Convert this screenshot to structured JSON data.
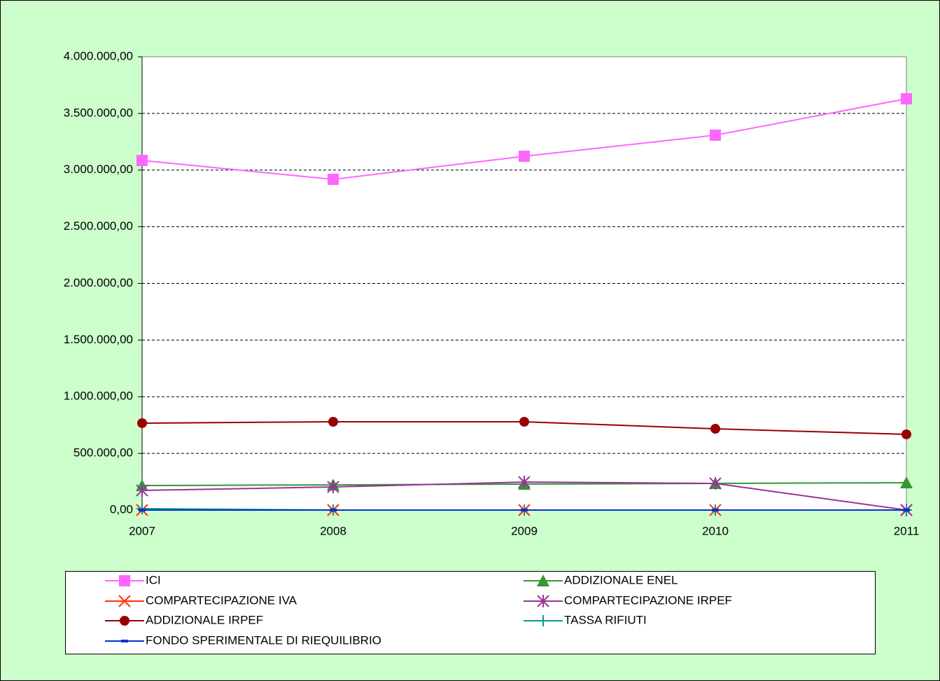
{
  "chart_data": {
    "type": "line",
    "categories": [
      "2007",
      "2008",
      "2009",
      "2010",
      "2011"
    ],
    "series": [
      {
        "name": "ICI",
        "color": "#ff66ff",
        "marker": "square",
        "values": [
          3085000,
          2918000,
          3122000,
          3308000,
          3629000
        ]
      },
      {
        "name": "ADDIZIONALE ENEL",
        "color": "#339933",
        "marker": "triangle",
        "values": [
          216000,
          222000,
          229000,
          235000,
          241000
        ]
      },
      {
        "name": "COMPARTECIPAZIONE IVA",
        "color": "#ff3300",
        "marker": "x",
        "values": [
          0,
          0,
          0,
          0,
          0
        ]
      },
      {
        "name": "COMPARTECIPAZIONE IRPEF",
        "color": "#993399",
        "marker": "asterisk",
        "values": [
          173000,
          204000,
          247000,
          235000,
          0
        ]
      },
      {
        "name": "ADDIZIONALE IRPEF",
        "color": "#990000",
        "marker": "circle",
        "values": [
          767000,
          779000,
          779000,
          717000,
          668000
        ]
      },
      {
        "name": "TASSA RIFIUTI",
        "color": "#009999",
        "marker": "plus",
        "values": [
          12000,
          0,
          0,
          0,
          0
        ]
      },
      {
        "name": "FONDO SPERIMENTALE DI RIEQUILIBRIO",
        "color": "#0033cc",
        "marker": "dash",
        "values": [
          0,
          0,
          0,
          0,
          0
        ]
      }
    ],
    "ylim": [
      0,
      4000000
    ],
    "yticks": [
      {
        "value": 0,
        "label": "0,00"
      },
      {
        "value": 500000,
        "label": "500.000,00"
      },
      {
        "value": 1000000,
        "label": "1.000.000,00"
      },
      {
        "value": 1500000,
        "label": "1.500.000,00"
      },
      {
        "value": 2000000,
        "label": "2.000.000,00"
      },
      {
        "value": 2500000,
        "label": "2.500.000,00"
      },
      {
        "value": 3000000,
        "label": "3.000.000,00"
      },
      {
        "value": 3500000,
        "label": "3.500.000,00"
      },
      {
        "value": 4000000,
        "label": "4.000.000,00"
      }
    ],
    "grid": true,
    "legend": "bottom"
  }
}
